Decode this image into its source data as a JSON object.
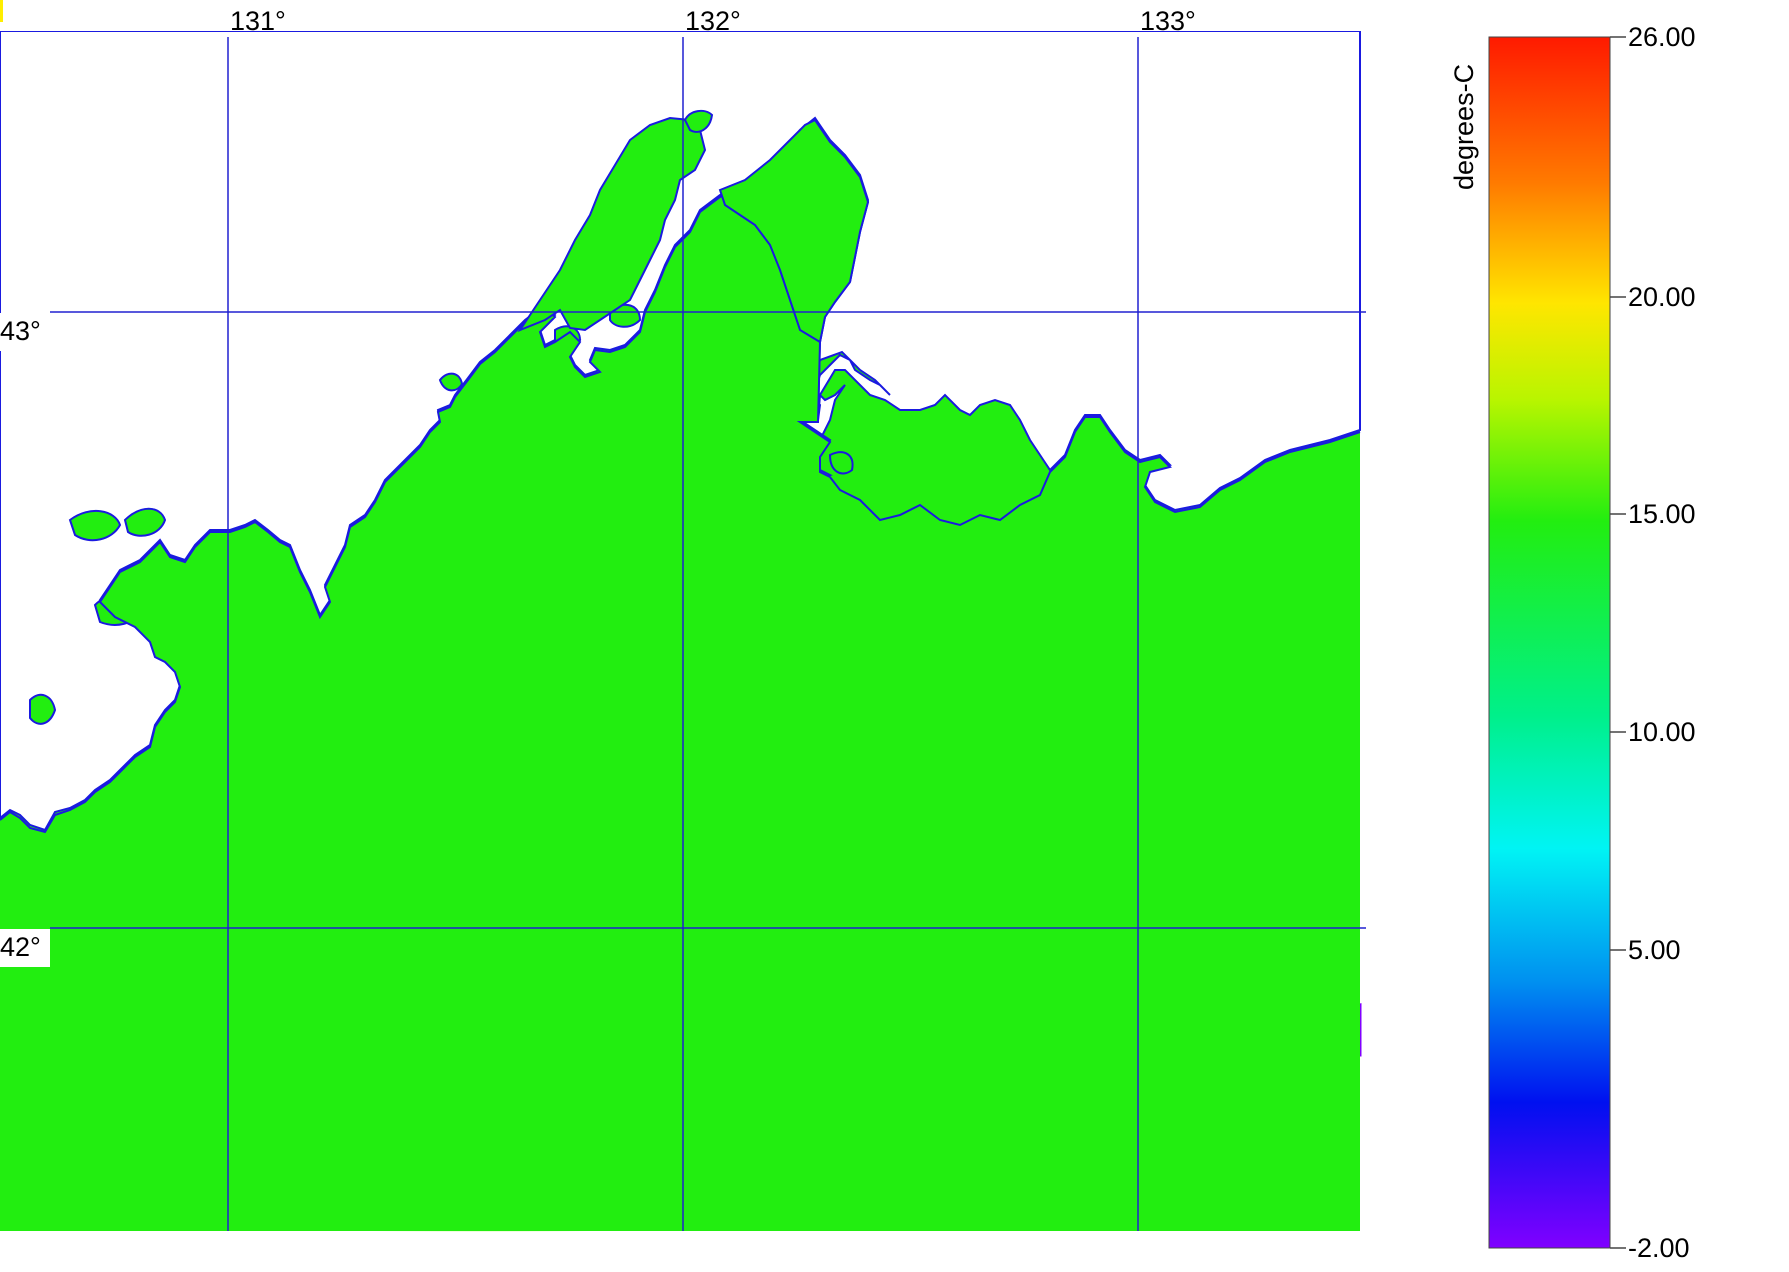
{
  "map": {
    "lon_labels": [
      "131°",
      "132°",
      "133°"
    ],
    "lat_labels": [
      "43°",
      "42°"
    ],
    "grid_color": "#2020d0",
    "coastline_color": "#1a1ae0",
    "land_color": "#ffffff",
    "sea_color": "#22ee10",
    "cold_core_color": "#000000"
  },
  "colorbar": {
    "unit": "degrees-C",
    "min": -2.0,
    "max": 26.0,
    "ticks": [
      {
        "value": 26.0,
        "label": "26.00"
      },
      {
        "value": 20.0,
        "label": "20.00"
      },
      {
        "value": 15.0,
        "label": "15.00"
      },
      {
        "value": 10.0,
        "label": "10.00"
      },
      {
        "value": 5.0,
        "label": "5.00"
      },
      {
        "value": -2.0,
        "label": "-2.00"
      }
    ]
  }
}
